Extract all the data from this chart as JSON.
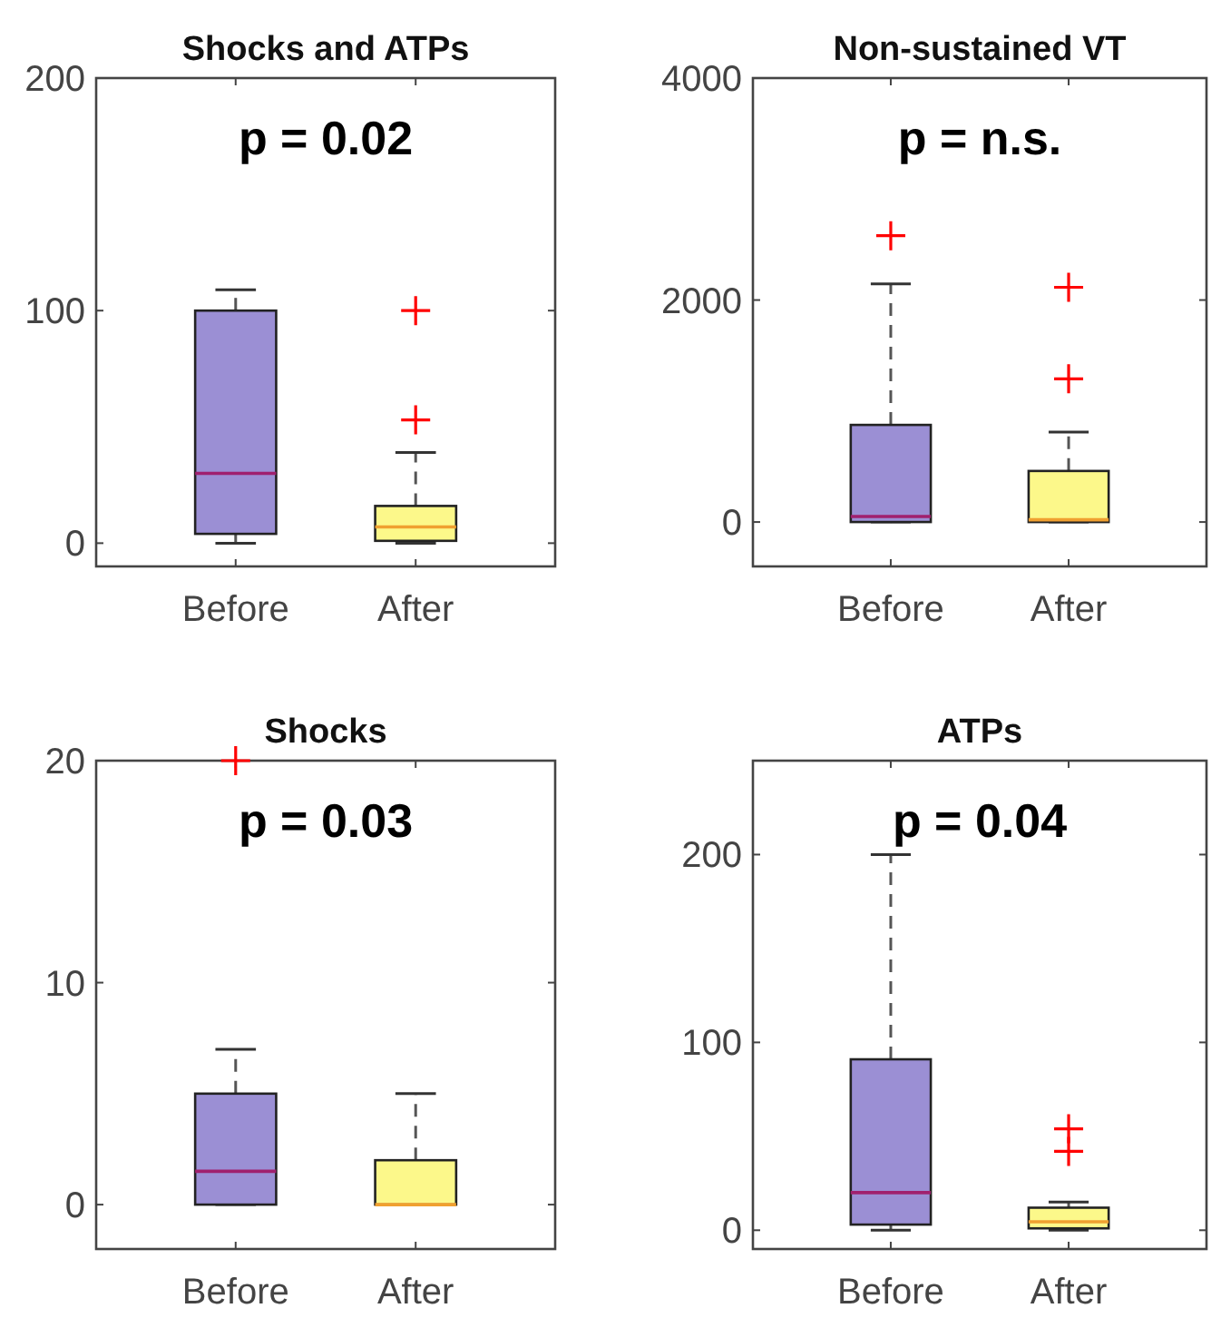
{
  "chart_data": [
    {
      "type": "box",
      "title": "Shocks and ATPs",
      "categories": [
        "Before",
        "After"
      ],
      "colors": [
        "#9b8fd4",
        "#fcf88a"
      ],
      "marker": "cross",
      "ylim": [
        -10,
        200
      ],
      "yticks": [
        0,
        100,
        200
      ],
      "annotations": [
        "p = 0.02"
      ],
      "boxes": [
        {
          "low": 0,
          "q1": 4,
          "median": 30,
          "q3": 100,
          "high": 109
        },
        {
          "low": 0,
          "q1": 1,
          "median": 7,
          "q3": 16,
          "high": 39,
          "outliers": [
            53,
            100
          ]
        }
      ]
    },
    {
      "type": "box",
      "title": "Non-sustained VT",
      "categories": [
        "Before",
        "After"
      ],
      "colors": [
        "#9b8fd4",
        "#fcf88a"
      ],
      "marker": "cross",
      "ylim": [
        -400,
        4000
      ],
      "yticks": [
        0,
        2000,
        4000
      ],
      "annotations": [
        "p = n.s."
      ],
      "boxes": [
        {
          "low": 0,
          "q1": 0,
          "median": 50,
          "q3": 875,
          "high": 2145,
          "outliers": [
            2580
          ]
        },
        {
          "low": 0,
          "q1": 0,
          "median": 20,
          "q3": 460,
          "high": 810,
          "outliers": [
            1290,
            2115
          ]
        }
      ]
    },
    {
      "type": "box",
      "title": "Shocks",
      "categories": [
        "Before",
        "After"
      ],
      "colors": [
        "#9b8fd4",
        "#fcf88a"
      ],
      "marker": "cross",
      "ylim": [
        -2,
        20
      ],
      "yticks": [
        0,
        10,
        20
      ],
      "annotations": [
        "p = 0.03"
      ],
      "boxes": [
        {
          "low": 0,
          "q1": 0,
          "median": 1.5,
          "q3": 5,
          "high": 7,
          "outliers": [
            20
          ]
        },
        {
          "low": 0,
          "q1": 0,
          "median": 0,
          "q3": 2,
          "high": 5
        }
      ]
    },
    {
      "type": "box",
      "title": "ATPs",
      "categories": [
        "Before",
        "After"
      ],
      "colors": [
        "#9b8fd4",
        "#fcf88a"
      ],
      "marker": "cross",
      "ylim": [
        -10,
        250
      ],
      "yticks": [
        0,
        100,
        200
      ],
      "annotations": [
        "p = 0.04"
      ],
      "boxes": [
        {
          "low": 0,
          "q1": 3,
          "median": 20,
          "q3": 91,
          "high": 200
        },
        {
          "low": 0,
          "q1": 1,
          "median": 4.5,
          "q3": 12,
          "high": 15,
          "outliers": [
            42,
            54
          ]
        }
      ]
    }
  ]
}
